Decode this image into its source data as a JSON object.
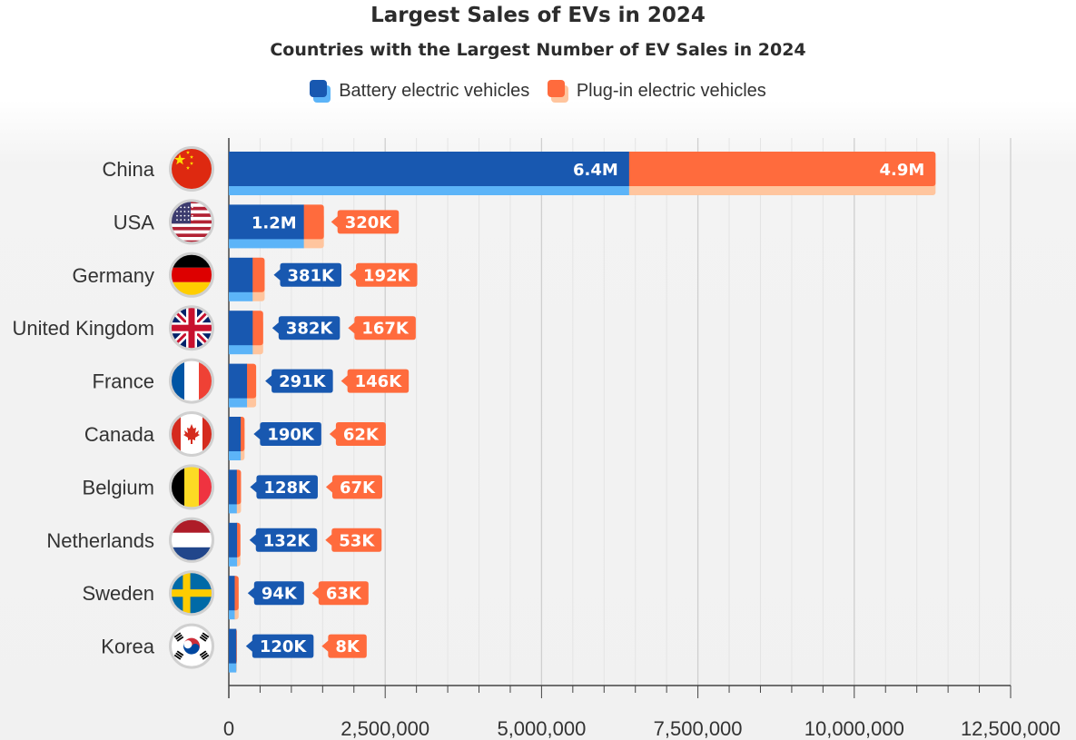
{
  "chart_data": {
    "type": "bar",
    "orientation": "horizontal",
    "stacked": true,
    "title": "Largest Sales of EVs in 2024",
    "subtitle": "Countries with the Largest Number of EV Sales in 2024",
    "categories": [
      "China",
      "USA",
      "Germany",
      "United Kingdom",
      "France",
      "Canada",
      "Belgium",
      "Netherlands",
      "Sweden",
      "Korea"
    ],
    "series": [
      {
        "name": "Battery electric vehicles",
        "color": "#1858b0",
        "shadow_color": "#5cb4f8",
        "values": [
          6400000,
          1200000,
          381000,
          382000,
          291000,
          190000,
          128000,
          132000,
          94000,
          120000
        ],
        "labels": [
          "6.4M",
          "1.2M",
          "381K",
          "382K",
          "291K",
          "190K",
          "128K",
          "132K",
          "94K",
          "120K"
        ]
      },
      {
        "name": "Plug-in electric vehicles",
        "color": "#ff6b3d",
        "shadow_color": "#ffc59e",
        "values": [
          4900000,
          320000,
          192000,
          167000,
          146000,
          62000,
          67000,
          53000,
          63000,
          8000
        ],
        "labels": [
          "4.9M",
          "320K",
          "192K",
          "167K",
          "146K",
          "62K",
          "67K",
          "53K",
          "63K",
          "8K"
        ]
      }
    ],
    "flags": [
      "china-flag-icon",
      "usa-flag-icon",
      "germany-flag-icon",
      "uk-flag-icon",
      "france-flag-icon",
      "canada-flag-icon",
      "belgium-flag-icon",
      "netherlands-flag-icon",
      "sweden-flag-icon",
      "korea-flag-icon"
    ],
    "xlim": [
      0,
      12500000
    ],
    "xticks": [
      0,
      2500000,
      5000000,
      7500000,
      10000000,
      12500000
    ],
    "xtick_labels": [
      "0",
      "2,500,000",
      "5,000,000",
      "7,500,000",
      "10,000,000",
      "12,500,000"
    ],
    "grid": "vertical",
    "legend_position": "top-center"
  }
}
